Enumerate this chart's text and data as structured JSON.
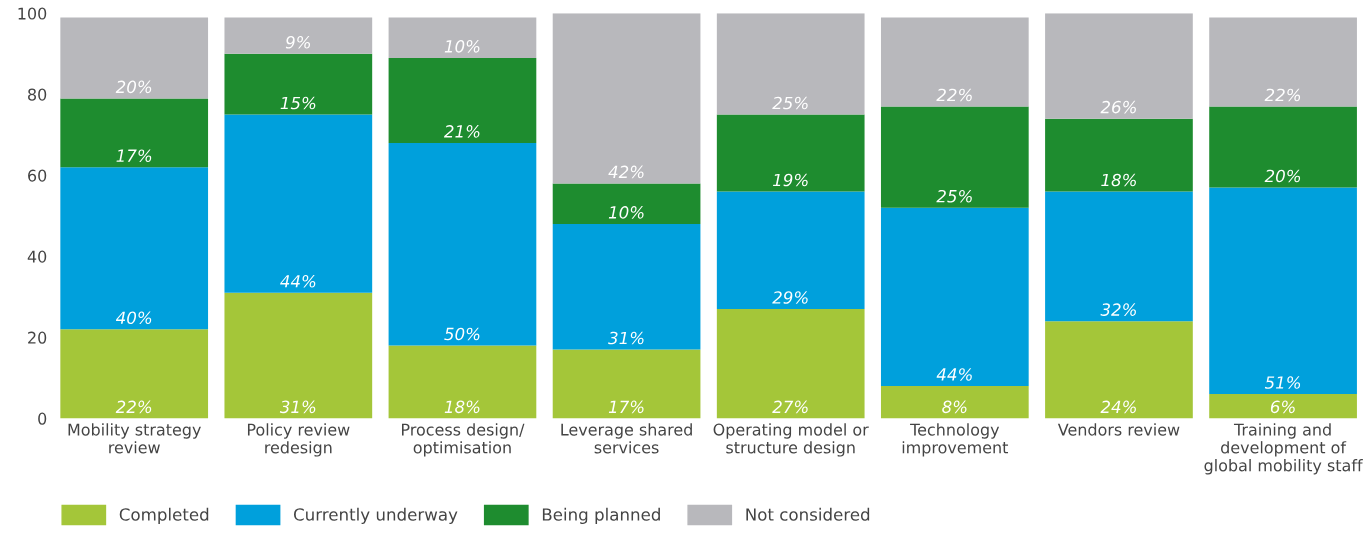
{
  "chart_data": {
    "type": "bar",
    "stacked": true,
    "categories": [
      "Mobility strategy\nreview",
      "Policy review\nredesign",
      "Process design/\noptimisation",
      "Leverage shared\nservices",
      "Operating model or\nstructure design",
      "Technology\nimprovement",
      "Vendors review",
      "Training and\ndevelopment of\nglobal mobility staff"
    ],
    "series": [
      {
        "name": "Completed",
        "color": "#a4c639",
        "values": [
          22,
          31,
          18,
          17,
          27,
          8,
          24,
          6
        ],
        "value_labels": [
          "22%",
          "31%",
          "18%",
          "17%",
          "27%",
          "8%",
          "24%",
          "6%"
        ]
      },
      {
        "name": "Currently underway",
        "color": "#00a0dc",
        "values": [
          40,
          44,
          50,
          31,
          29,
          44,
          32,
          51
        ],
        "value_labels": [
          "40%",
          "44%",
          "50%",
          "31%",
          "29%",
          "44%",
          "32%",
          "51%"
        ]
      },
      {
        "name": "Being planned",
        "color": "#1e8c2f",
        "values": [
          17,
          15,
          21,
          10,
          19,
          25,
          18,
          20
        ],
        "value_labels": [
          "17%",
          "15%",
          "21%",
          "10%",
          "19%",
          "25%",
          "18%",
          "20%"
        ]
      },
      {
        "name": "Not considered",
        "color": "#b8b8bc",
        "values": [
          20,
          9,
          10,
          42,
          25,
          22,
          26,
          22
        ],
        "value_labels": [
          "20%",
          "9%",
          "10%",
          "42%",
          "25%",
          "22%",
          "26%",
          "22%"
        ]
      }
    ],
    "ylim": [
      0,
      100
    ],
    "yticks": [
      0,
      20,
      40,
      60,
      80,
      100
    ],
    "grid": false,
    "legend": "bottom left"
  }
}
